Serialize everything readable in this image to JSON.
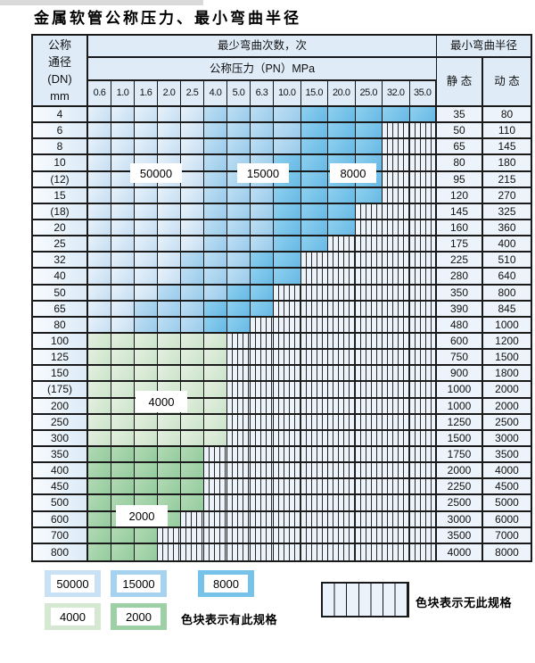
{
  "title": "金属软管公称压力、最小弯曲半径",
  "header": {
    "dn_lines": [
      "公称",
      "通径",
      "(DN)",
      "mm"
    ],
    "cycles_header": "最少弯曲次数，次",
    "pressure_header": "公称压力（PN）MPa",
    "radius_header": "最小弯曲半径",
    "static_label": "静 态",
    "dynamic_label": "动 态"
  },
  "pressures": [
    "0.6",
    "1.0",
    "1.6",
    "2.0",
    "2.5",
    "4.0",
    "5.0",
    "6.3",
    "10.0",
    "15.0",
    "20.0",
    "25.0",
    "32.0",
    "35.0"
  ],
  "cell_legend_note": "b1=50000 cycles, b2=15000, b3=8000, g1=4000, g2=2000, x=no spec (hatched)",
  "rows": [
    {
      "dn": "4",
      "cells": [
        "b1",
        "b1",
        "b1",
        "b1",
        "b1",
        "b2",
        "b2",
        "b2",
        "b2",
        "b3",
        "b3",
        "b3",
        "b3",
        "b3"
      ],
      "static": "35",
      "dynamic": "80"
    },
    {
      "dn": "6",
      "cells": [
        "b1",
        "b1",
        "b1",
        "b1",
        "b1",
        "b2",
        "b2",
        "b2",
        "b2",
        "b3",
        "b3",
        "b3",
        "x",
        "x"
      ],
      "static": "50",
      "dynamic": "110"
    },
    {
      "dn": "8",
      "cells": [
        "b1",
        "b1",
        "b1",
        "b1",
        "b1",
        "b2",
        "b2",
        "b2",
        "b2",
        "b3",
        "b3",
        "b3",
        "x",
        "x"
      ],
      "static": "65",
      "dynamic": "145"
    },
    {
      "dn": "10",
      "cells": [
        "b1",
        "b1",
        "b1",
        "b1",
        "b1",
        "b2",
        "b2",
        "b2",
        "b3",
        "b3",
        "b3",
        "b3",
        "x",
        "x"
      ],
      "static": "80",
      "dynamic": "180"
    },
    {
      "dn": "(12)",
      "cells": [
        "b1",
        "b1",
        "b1",
        "b1",
        "b1",
        "b2",
        "b2",
        "b2",
        "b3",
        "b3",
        "b3",
        "b3",
        "x",
        "x"
      ],
      "static": "95",
      "dynamic": "215"
    },
    {
      "dn": "15",
      "cells": [
        "b1",
        "b1",
        "b1",
        "b1",
        "b1",
        "b2",
        "b2",
        "b2",
        "b3",
        "b3",
        "b3",
        "b3",
        "x",
        "x"
      ],
      "static": "120",
      "dynamic": "270"
    },
    {
      "dn": "(18)",
      "cells": [
        "b1",
        "b1",
        "b1",
        "b1",
        "b1",
        "b2",
        "b2",
        "b2",
        "b3",
        "b3",
        "b3",
        "x",
        "x",
        "x"
      ],
      "static": "145",
      "dynamic": "325"
    },
    {
      "dn": "20",
      "cells": [
        "b1",
        "b1",
        "b1",
        "b1",
        "b1",
        "b2",
        "b2",
        "b2",
        "b3",
        "b3",
        "b3",
        "x",
        "x",
        "x"
      ],
      "static": "160",
      "dynamic": "360"
    },
    {
      "dn": "25",
      "cells": [
        "b1",
        "b1",
        "b1",
        "b1",
        "b1",
        "b2",
        "b2",
        "b2",
        "b3",
        "b3",
        "x",
        "x",
        "x",
        "x"
      ],
      "static": "175",
      "dynamic": "400"
    },
    {
      "dn": "32",
      "cells": [
        "b1",
        "b1",
        "b1",
        "b1",
        "b2",
        "b2",
        "b2",
        "b3",
        "b3",
        "x",
        "x",
        "x",
        "x",
        "x"
      ],
      "static": "225",
      "dynamic": "510"
    },
    {
      "dn": "40",
      "cells": [
        "b1",
        "b1",
        "b1",
        "b1",
        "b2",
        "b2",
        "b2",
        "b3",
        "b3",
        "x",
        "x",
        "x",
        "x",
        "x"
      ],
      "static": "280",
      "dynamic": "640"
    },
    {
      "dn": "50",
      "cells": [
        "b1",
        "b1",
        "b1",
        "b2",
        "b2",
        "b2",
        "b3",
        "b3",
        "x",
        "x",
        "x",
        "x",
        "x",
        "x"
      ],
      "static": "350",
      "dynamic": "800"
    },
    {
      "dn": "65",
      "cells": [
        "b1",
        "b1",
        "b2",
        "b2",
        "b2",
        "b3",
        "b3",
        "b3",
        "x",
        "x",
        "x",
        "x",
        "x",
        "x"
      ],
      "static": "390",
      "dynamic": "845"
    },
    {
      "dn": "80",
      "cells": [
        "b1",
        "b1",
        "b2",
        "b2",
        "b2",
        "b3",
        "b3",
        "x",
        "x",
        "x",
        "x",
        "x",
        "x",
        "x"
      ],
      "static": "480",
      "dynamic": "1000"
    },
    {
      "dn": "100",
      "cells": [
        "g1",
        "g1",
        "g1",
        "g1",
        "g1",
        "g1",
        "x",
        "x",
        "x",
        "x",
        "x",
        "x",
        "x",
        "x"
      ],
      "static": "600",
      "dynamic": "1200"
    },
    {
      "dn": "125",
      "cells": [
        "g1",
        "g1",
        "g1",
        "g1",
        "g1",
        "g1",
        "x",
        "x",
        "x",
        "x",
        "x",
        "x",
        "x",
        "x"
      ],
      "static": "750",
      "dynamic": "1500"
    },
    {
      "dn": "150",
      "cells": [
        "g1",
        "g1",
        "g1",
        "g1",
        "g1",
        "g1",
        "x",
        "x",
        "x",
        "x",
        "x",
        "x",
        "x",
        "x"
      ],
      "static": "900",
      "dynamic": "1800"
    },
    {
      "dn": "(175)",
      "cells": [
        "g1",
        "g1",
        "g1",
        "g1",
        "g1",
        "g1",
        "x",
        "x",
        "x",
        "x",
        "x",
        "x",
        "x",
        "x"
      ],
      "static": "1000",
      "dynamic": "2000"
    },
    {
      "dn": "200",
      "cells": [
        "g1",
        "g1",
        "g1",
        "g1",
        "g1",
        "g1",
        "x",
        "x",
        "x",
        "x",
        "x",
        "x",
        "x",
        "x"
      ],
      "static": "1000",
      "dynamic": "2000"
    },
    {
      "dn": "250",
      "cells": [
        "g1",
        "g1",
        "g1",
        "g1",
        "g1",
        "g1",
        "x",
        "x",
        "x",
        "x",
        "x",
        "x",
        "x",
        "x"
      ],
      "static": "1250",
      "dynamic": "2500"
    },
    {
      "dn": "300",
      "cells": [
        "g1",
        "g1",
        "g1",
        "g1",
        "g1",
        "g1",
        "x",
        "x",
        "x",
        "x",
        "x",
        "x",
        "x",
        "x"
      ],
      "static": "1500",
      "dynamic": "3000"
    },
    {
      "dn": "350",
      "cells": [
        "g2",
        "g2",
        "g2",
        "g2",
        "g2",
        "x",
        "x",
        "x",
        "x",
        "x",
        "x",
        "x",
        "x",
        "x"
      ],
      "static": "1750",
      "dynamic": "3500"
    },
    {
      "dn": "400",
      "cells": [
        "g2",
        "g2",
        "g2",
        "g2",
        "g2",
        "x",
        "x",
        "x",
        "x",
        "x",
        "x",
        "x",
        "x",
        "x"
      ],
      "static": "2000",
      "dynamic": "4000"
    },
    {
      "dn": "450",
      "cells": [
        "g2",
        "g2",
        "g2",
        "g2",
        "g2",
        "x",
        "x",
        "x",
        "x",
        "x",
        "x",
        "x",
        "x",
        "x"
      ],
      "static": "2250",
      "dynamic": "4500"
    },
    {
      "dn": "500",
      "cells": [
        "g2",
        "g2",
        "g2",
        "g2",
        "g2",
        "x",
        "x",
        "x",
        "x",
        "x",
        "x",
        "x",
        "x",
        "x"
      ],
      "static": "2500",
      "dynamic": "5000"
    },
    {
      "dn": "600",
      "cells": [
        "g2",
        "g2",
        "g2",
        "g2",
        "x",
        "x",
        "x",
        "x",
        "x",
        "x",
        "x",
        "x",
        "x",
        "x"
      ],
      "static": "3000",
      "dynamic": "6000"
    },
    {
      "dn": "700",
      "cells": [
        "g2",
        "g2",
        "g2",
        "x",
        "x",
        "x",
        "x",
        "x",
        "x",
        "x",
        "x",
        "x",
        "x",
        "x"
      ],
      "static": "3500",
      "dynamic": "7000"
    },
    {
      "dn": "800",
      "cells": [
        "g2",
        "g2",
        "g2",
        "x",
        "x",
        "x",
        "x",
        "x",
        "x",
        "x",
        "x",
        "x",
        "x",
        "x"
      ],
      "static": "4000",
      "dynamic": "8000"
    }
  ],
  "zone_labels": {
    "z50000": "50000",
    "z15000": "15000",
    "z8000": "8000",
    "z4000": "4000",
    "z2000": "2000"
  },
  "legend": {
    "chips": [
      {
        "label": "50000",
        "zone": "b1"
      },
      {
        "label": "15000",
        "zone": "b2"
      },
      {
        "label": "8000",
        "zone": "b3"
      },
      {
        "label": "4000",
        "zone": "g1"
      },
      {
        "label": "2000",
        "zone": "g2"
      }
    ],
    "has_spec_text": "色块表示有此规格",
    "no_spec_text": "色块表示无此规格"
  },
  "colors": {
    "cycles_50000": "#c9e1f4",
    "cycles_15000": "#a5d2ee",
    "cycles_8000": "#76c2e8",
    "cycles_4000": "#d5e8d2",
    "cycles_2000": "#9ed0a6",
    "header_bg": "#dfecf8",
    "grid_line": "#1a1a1a"
  }
}
